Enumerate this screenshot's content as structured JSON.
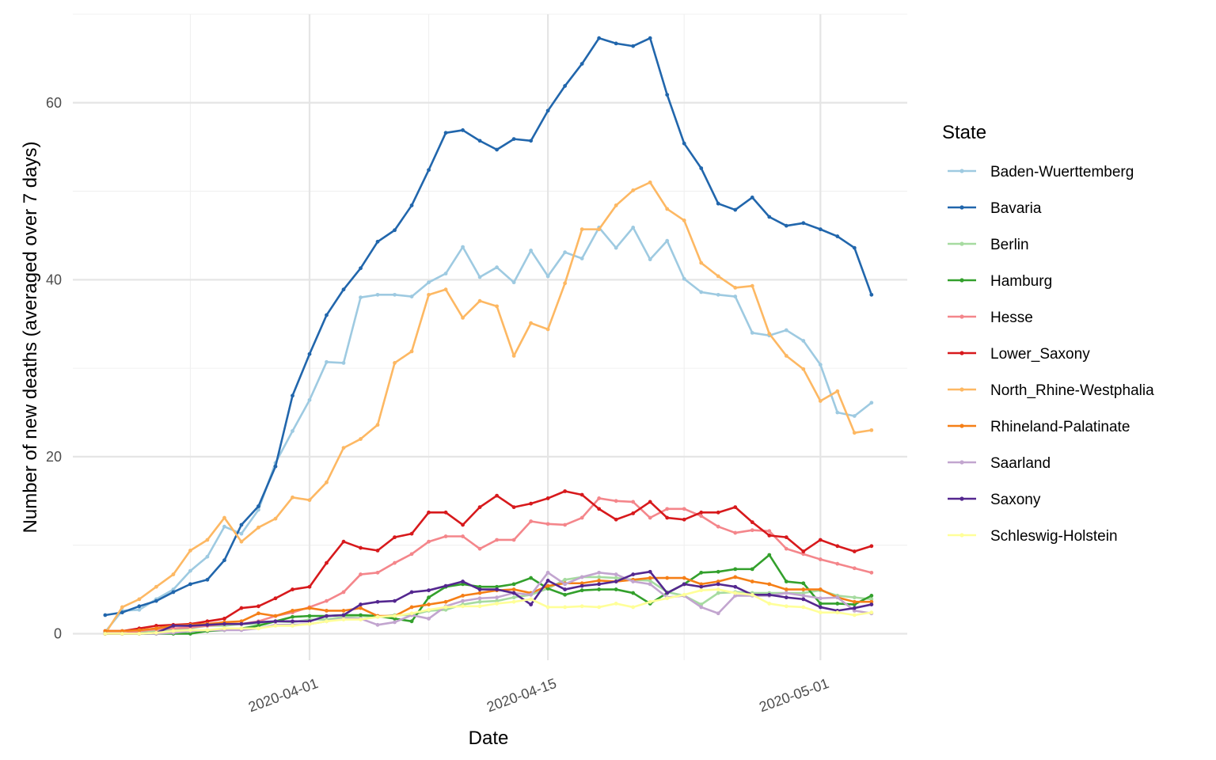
{
  "chart_data": {
    "type": "line",
    "title": "",
    "xlabel": "Date",
    "ylabel": "Number of new deaths (averaged over 7 days)",
    "legend_title": "State",
    "legend_position": "right",
    "grid": true,
    "x_start": "2020-03-20",
    "x_step_days": 1,
    "x_ticks": [
      "2020-04-01",
      "2020-04-15",
      "2020-05-01"
    ],
    "ylim": [
      0,
      70
    ],
    "y_ticks": [
      0,
      20,
      40,
      60
    ],
    "series": [
      {
        "name": "Baden-Wuerttemberg",
        "color": "#9ecae1",
        "values": [
          0.2,
          2.6,
          2.7,
          3.9,
          5.0,
          7.1,
          8.7,
          12.1,
          11.3,
          14.0,
          19.3,
          22.9,
          26.4,
          30.7,
          30.6,
          38.0,
          38.3,
          38.3,
          38.1,
          39.7,
          40.7,
          43.7,
          40.3,
          41.4,
          39.7,
          43.3,
          40.4,
          43.1,
          42.4,
          45.9,
          43.6,
          45.9,
          42.3,
          44.4,
          40.1,
          38.6,
          38.3,
          38.1,
          34.0,
          33.7,
          34.3,
          33.1,
          30.4,
          25.0,
          24.6,
          26.1
        ]
      },
      {
        "name": "Bavaria",
        "color": "#2166ac",
        "values": [
          2.1,
          2.4,
          3.1,
          3.7,
          4.7,
          5.6,
          6.1,
          8.3,
          12.3,
          14.4,
          18.9,
          26.9,
          31.6,
          36.0,
          38.9,
          41.3,
          44.3,
          45.6,
          48.4,
          52.4,
          56.6,
          56.9,
          55.7,
          54.7,
          55.9,
          55.7,
          59.1,
          61.9,
          64.4,
          67.3,
          66.7,
          66.4,
          67.3,
          60.9,
          55.4,
          52.6,
          48.6,
          47.9,
          49.3,
          47.1,
          46.1,
          46.4,
          45.7,
          44.9,
          43.6,
          38.3
        ]
      },
      {
        "name": "Berlin",
        "color": "#a6dba0",
        "values": [
          0.0,
          0.0,
          0.1,
          0.3,
          0.4,
          0.6,
          0.9,
          0.9,
          1.1,
          1.1,
          1.4,
          1.3,
          1.6,
          1.6,
          1.9,
          2.0,
          1.9,
          2.1,
          2.1,
          2.6,
          2.7,
          3.3,
          3.6,
          3.7,
          4.1,
          4.4,
          5.1,
          6.1,
          6.4,
          6.4,
          6.3,
          6.1,
          6.0,
          4.7,
          4.3,
          3.3,
          4.6,
          4.7,
          4.6,
          4.6,
          4.6,
          4.6,
          4.9,
          4.3,
          4.1,
          3.9
        ]
      },
      {
        "name": "Hamburg",
        "color": "#33a02c",
        "values": [
          0.0,
          0.0,
          0.0,
          0.0,
          0.0,
          0.0,
          0.3,
          0.4,
          0.6,
          0.9,
          1.4,
          1.9,
          2.0,
          2.0,
          2.1,
          2.1,
          2.0,
          1.7,
          1.4,
          4.1,
          5.3,
          5.6,
          5.3,
          5.3,
          5.6,
          6.3,
          5.1,
          4.4,
          4.9,
          5.0,
          5.0,
          4.6,
          3.4,
          4.6,
          5.6,
          6.9,
          7.0,
          7.3,
          7.3,
          8.9,
          5.9,
          5.7,
          3.4,
          3.4,
          3.3,
          4.3
        ]
      },
      {
        "name": "Hesse",
        "color": "#f4868b",
        "values": [
          0.0,
          0.0,
          0.3,
          0.5,
          0.6,
          0.7,
          0.9,
          1.1,
          1.1,
          1.4,
          2.0,
          2.4,
          3.0,
          3.7,
          4.7,
          6.7,
          6.9,
          8.0,
          9.0,
          10.4,
          11.0,
          11.0,
          9.6,
          10.6,
          10.6,
          12.7,
          12.4,
          12.3,
          13.1,
          15.3,
          15.0,
          14.9,
          13.1,
          14.1,
          14.1,
          13.3,
          12.1,
          11.4,
          11.7,
          11.6,
          9.6,
          9.0,
          8.4,
          7.9,
          7.4,
          6.9
        ]
      },
      {
        "name": "Lower_Saxony",
        "color": "#d7191c",
        "values": [
          0.3,
          0.3,
          0.6,
          0.9,
          1.0,
          1.1,
          1.4,
          1.7,
          2.9,
          3.1,
          4.0,
          5.0,
          5.3,
          8.0,
          10.4,
          9.7,
          9.4,
          10.9,
          11.3,
          13.7,
          13.7,
          12.3,
          14.3,
          15.6,
          14.3,
          14.7,
          15.3,
          16.1,
          15.7,
          14.1,
          12.9,
          13.6,
          14.9,
          13.1,
          12.9,
          13.7,
          13.7,
          14.3,
          12.6,
          11.1,
          10.9,
          9.3,
          10.6,
          9.9,
          9.3,
          9.9
        ]
      },
      {
        "name": "North_Rhine-Westphalia",
        "color": "#fdb863",
        "values": [
          0.0,
          3.0,
          3.9,
          5.3,
          6.7,
          9.4,
          10.6,
          13.1,
          10.4,
          12.0,
          13.0,
          15.4,
          15.1,
          17.1,
          21.0,
          22.0,
          23.6,
          30.6,
          31.9,
          38.3,
          38.9,
          35.7,
          37.6,
          37.0,
          31.4,
          35.1,
          34.4,
          39.6,
          45.7,
          45.7,
          48.4,
          50.1,
          51.0,
          48.0,
          46.7,
          41.9,
          40.4,
          39.1,
          39.3,
          33.9,
          31.4,
          29.9,
          26.3,
          27.4,
          22.7,
          23.0
        ]
      },
      {
        "name": "Rhineland-Palatinate",
        "color": "#f57f17",
        "values": [
          0.3,
          0.3,
          0.4,
          0.6,
          0.9,
          1.0,
          1.1,
          1.3,
          1.4,
          2.3,
          2.0,
          2.6,
          2.9,
          2.6,
          2.6,
          2.9,
          2.0,
          2.0,
          3.0,
          3.3,
          3.6,
          4.3,
          4.6,
          4.9,
          5.0,
          4.6,
          5.4,
          5.7,
          5.7,
          6.0,
          5.9,
          6.1,
          6.3,
          6.3,
          6.3,
          5.6,
          5.9,
          6.4,
          5.9,
          5.6,
          5.0,
          5.0,
          5.0,
          4.1,
          3.6,
          3.6
        ]
      },
      {
        "name": "Saarland",
        "color": "#c2a5cf",
        "values": [
          0.0,
          0.0,
          0.0,
          0.0,
          0.1,
          0.3,
          0.4,
          0.4,
          0.4,
          0.6,
          1.0,
          1.0,
          1.1,
          1.4,
          1.7,
          1.7,
          1.0,
          1.3,
          2.1,
          1.7,
          3.1,
          3.7,
          4.0,
          4.1,
          4.6,
          4.4,
          6.9,
          5.6,
          6.4,
          6.9,
          6.7,
          5.9,
          5.6,
          4.1,
          4.3,
          3.0,
          2.3,
          4.3,
          4.3,
          4.3,
          4.6,
          4.3,
          4.0,
          4.1,
          2.6,
          2.3
        ]
      },
      {
        "name": "Saxony",
        "color": "#54278f",
        "values": [
          0.0,
          0.0,
          0.0,
          0.1,
          0.9,
          0.9,
          1.0,
          1.1,
          1.1,
          1.3,
          1.4,
          1.4,
          1.4,
          2.0,
          2.1,
          3.3,
          3.6,
          3.7,
          4.7,
          4.9,
          5.4,
          5.9,
          5.0,
          5.0,
          4.6,
          3.3,
          6.0,
          5.0,
          5.4,
          5.6,
          5.9,
          6.7,
          7.0,
          4.6,
          5.6,
          5.3,
          5.6,
          5.3,
          4.4,
          4.4,
          4.1,
          3.9,
          3.0,
          2.6,
          2.9,
          3.3
        ]
      },
      {
        "name": "Schleswig-Holstein",
        "color": "#ffff99",
        "values": [
          0.0,
          0.0,
          0.0,
          0.1,
          0.3,
          0.4,
          0.4,
          0.6,
          0.6,
          0.6,
          0.9,
          0.9,
          1.1,
          1.4,
          1.6,
          1.6,
          1.9,
          2.0,
          2.3,
          2.7,
          3.0,
          3.1,
          3.1,
          3.4,
          3.6,
          3.9,
          3.0,
          3.0,
          3.1,
          3.0,
          3.4,
          3.0,
          3.6,
          4.0,
          4.4,
          4.9,
          5.0,
          4.6,
          4.4,
          3.4,
          3.1,
          3.0,
          2.4,
          2.4,
          2.1,
          2.4
        ]
      }
    ]
  }
}
